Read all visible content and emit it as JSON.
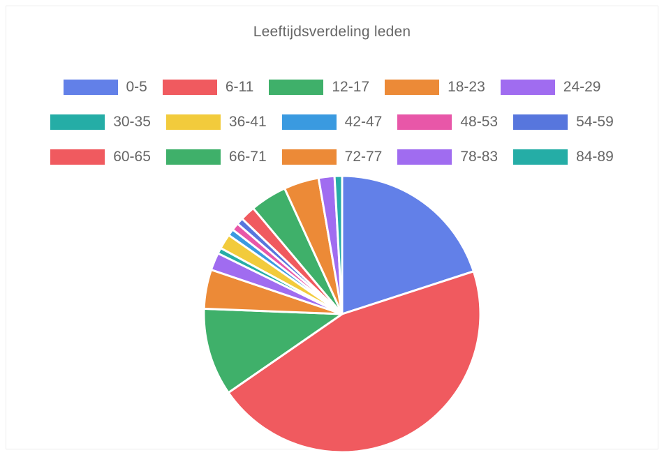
{
  "chart_data": {
    "type": "pie",
    "title": "Leeftijdsverdeling leden",
    "legend_position": "top",
    "categories": [
      "0-5",
      "6-11",
      "12-17",
      "18-23",
      "24-29",
      "30-35",
      "36-41",
      "42-47",
      "48-53",
      "54-59",
      "60-65",
      "66-71",
      "72-77",
      "78-83",
      "84-89"
    ],
    "values": [
      20.5,
      46.5,
      10.5,
      4.7,
      2.1,
      0.7,
      1.8,
      0.8,
      0.9,
      0.8,
      1.8,
      4.4,
      4.2,
      1.9,
      0.9
    ],
    "colors": [
      "#6280e8",
      "#f05a5f",
      "#3fb06a",
      "#ec8a37",
      "#a06cf0",
      "#25ada6",
      "#f2cb3c",
      "#3a9ae0",
      "#e857a8",
      "#5776dd",
      "#f05a5f",
      "#3fb06a",
      "#ec8a37",
      "#a06cf0",
      "#25ada6"
    ]
  }
}
